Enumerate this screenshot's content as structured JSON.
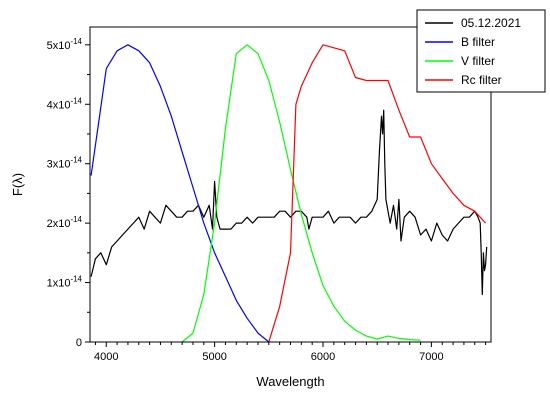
{
  "chart_data": {
    "type": "line",
    "xlabel": "Wavelength",
    "ylabel": "F(λ)",
    "xlim": [
      3850,
      7550
    ],
    "ylim": [
      0,
      5.3
    ],
    "x_ticks": [
      4000,
      5000,
      6000,
      7000
    ],
    "x_tick_labels": [
      "4000",
      "5000",
      "6000",
      "7000"
    ],
    "y_ticks": [
      0,
      1,
      2,
      3,
      4,
      5
    ],
    "y_tick_labels": [
      {
        "mantissa": "0",
        "exponent": ""
      },
      {
        "mantissa": "1x10",
        "exponent": "-14"
      },
      {
        "mantissa": "2x10",
        "exponent": "-14"
      },
      {
        "mantissa": "3x10",
        "exponent": "-14"
      },
      {
        "mantissa": "4x10",
        "exponent": "-14"
      },
      {
        "mantissa": "5x10",
        "exponent": "-14"
      }
    ],
    "y_unit": "1e-14",
    "grid": false,
    "legend_position": "top-right",
    "series": [
      {
        "name": "05.12.2021",
        "color": "#000000",
        "x": [
          3860,
          3900,
          3950,
          4000,
          4050,
          4100,
          4150,
          4200,
          4250,
          4300,
          4350,
          4400,
          4450,
          4500,
          4550,
          4600,
          4650,
          4700,
          4750,
          4800,
          4850,
          4900,
          4950,
          4980,
          5000,
          5010,
          5020,
          5050,
          5100,
          5150,
          5200,
          5250,
          5300,
          5350,
          5400,
          5450,
          5500,
          5550,
          5600,
          5650,
          5700,
          5750,
          5800,
          5850,
          5870,
          5900,
          5950,
          6000,
          6050,
          6100,
          6150,
          6200,
          6250,
          6300,
          6350,
          6400,
          6450,
          6500,
          6520,
          6540,
          6550,
          6560,
          6570,
          6580,
          6600,
          6620,
          6650,
          6680,
          6700,
          6720,
          6750,
          6800,
          6850,
          6900,
          6950,
          7000,
          7050,
          7100,
          7150,
          7200,
          7250,
          7300,
          7350,
          7400,
          7430,
          7450,
          7460,
          7470,
          7480,
          7490,
          7500,
          7510
        ],
        "y": [
          1.1,
          1.4,
          1.5,
          1.3,
          1.6,
          1.7,
          1.8,
          1.9,
          2.0,
          2.1,
          1.9,
          2.2,
          2.1,
          2.0,
          2.3,
          2.2,
          2.1,
          2.1,
          2.2,
          2.2,
          2.3,
          2.1,
          2.3,
          1.9,
          2.7,
          2.4,
          2.1,
          1.9,
          1.9,
          1.9,
          2.0,
          2.0,
          2.1,
          2.0,
          2.1,
          2.1,
          2.1,
          2.1,
          2.2,
          2.2,
          2.1,
          2.2,
          2.2,
          2.1,
          1.9,
          2.1,
          2.1,
          2.1,
          2.2,
          2.0,
          2.1,
          2.1,
          2.1,
          2.0,
          2.1,
          2.1,
          2.2,
          2.4,
          3.2,
          3.8,
          3.5,
          3.9,
          3.0,
          2.4,
          2.2,
          2.0,
          2.3,
          1.9,
          2.4,
          1.7,
          2.1,
          2.2,
          2.1,
          1.8,
          1.9,
          1.7,
          2.0,
          1.8,
          1.7,
          1.9,
          2.0,
          2.1,
          2.1,
          2.2,
          2.1,
          2.0,
          1.5,
          0.8,
          1.5,
          1.2,
          1.3,
          1.6
        ]
      },
      {
        "name": "B filter",
        "color": "#0000ff",
        "x": [
          3860,
          4000,
          4100,
          4200,
          4300,
          4400,
          4500,
          4600,
          4700,
          4800,
          4900,
          5000,
          5100,
          5200,
          5300,
          5400,
          5500
        ],
        "y": [
          2.8,
          4.6,
          4.9,
          5.0,
          4.9,
          4.7,
          4.3,
          3.8,
          3.2,
          2.6,
          2.0,
          1.5,
          1.1,
          0.7,
          0.4,
          0.15,
          0.0
        ]
      },
      {
        "name": "V filter",
        "color": "#00ff00",
        "x": [
          4700,
          4800,
          4900,
          5000,
          5100,
          5200,
          5300,
          5400,
          5500,
          5600,
          5700,
          5800,
          5900,
          6000,
          6100,
          6200,
          6300,
          6400,
          6500,
          6600,
          6700,
          6800,
          6900
        ],
        "y": [
          0.0,
          0.15,
          0.8,
          2.0,
          3.6,
          4.85,
          5.0,
          4.85,
          4.4,
          3.7,
          2.9,
          2.15,
          1.5,
          0.95,
          0.6,
          0.35,
          0.2,
          0.1,
          0.05,
          0.1,
          0.06,
          0.04,
          0.03
        ]
      },
      {
        "name": "Rc filter",
        "color": "#ff0000",
        "x": [
          5500,
          5600,
          5700,
          5750,
          5800,
          5900,
          6000,
          6100,
          6200,
          6300,
          6400,
          6500,
          6600,
          6700,
          6800,
          6900,
          7000,
          7100,
          7200,
          7300,
          7400,
          7500
        ],
        "y": [
          0.0,
          0.6,
          1.5,
          4.0,
          4.3,
          4.7,
          5.0,
          4.95,
          4.9,
          4.45,
          4.4,
          4.4,
          4.4,
          3.9,
          3.45,
          3.45,
          3.0,
          2.75,
          2.5,
          2.3,
          2.2,
          2.0
        ]
      }
    ]
  }
}
